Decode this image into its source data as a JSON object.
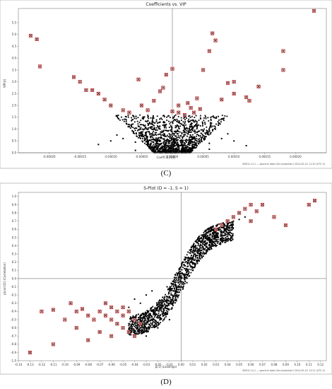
{
  "charts": [
    {
      "panel_label": "(C)",
      "title": "Coefficients vs. VIP",
      "xlabel": "CoeffCS[2](8)",
      "ylabel": "VIP[4]",
      "footer": "SIMCA 14.1 — spectral data (Ser-hydantoin) 2014-05-22 11:20 (UTC-5)",
      "xticks": [
        "-0.00020",
        "-0.00015",
        "-0.00010",
        "-0.00005",
        "0.00000",
        "0.00005",
        "0.00010",
        "0.00015",
        "0.00020"
      ],
      "yticks": [
        "0.0",
        "0.5",
        "1.0",
        "1.5",
        "2.0",
        "2.5",
        "3.0",
        "3.5",
        "4.0",
        "4.5",
        "5.0",
        "5.5"
      ]
    },
    {
      "panel_label": "(D)",
      "title": "S-Plot (D = -1, S = 1)",
      "xlabel": "p[1] (Loadings)",
      "ylabel": "p(corr)[1] (Correlation)",
      "footer": "SIMCA 14.1 — spectral data (Ser-hydantoin) 2014-05-22 11:21 (UTC-5)",
      "xticks": [
        "-0.14",
        "-0.13",
        "-0.12",
        "-0.11",
        "-0.10",
        "-0.09",
        "-0.08",
        "-0.07",
        "-0.06",
        "-0.05",
        "-0.04",
        "-0.03",
        "-0.02",
        "-0.01",
        "0.00",
        "0.01",
        "0.02",
        "0.03",
        "0.04",
        "0.05",
        "0.06",
        "0.07",
        "0.08",
        "0.09",
        "0.10",
        "0.11",
        "0.12"
      ],
      "yticks": [
        "-1.0",
        "-0.9",
        "-0.8",
        "-0.7",
        "-0.6",
        "-0.5",
        "-0.4",
        "-0.3",
        "-0.2",
        "-0.1",
        "0.0",
        "0.1",
        "0.2",
        "0.3",
        "0.4",
        "0.5",
        "0.6",
        "0.7",
        "0.8",
        "0.9",
        "1.0"
      ]
    }
  ],
  "chart_data": [
    {
      "type": "scatter",
      "title": "Coefficients vs. VIP",
      "xlabel": "CoeffCS[2](8)",
      "ylabel": "VIP[4]",
      "xlim": [
        -0.00025,
        0.00025
      ],
      "ylim": [
        0,
        6.1
      ],
      "grid": false,
      "series": [
        {
          "color": "#000000",
          "marker": "dot",
          "points": [
            [
              0.0,
              0.1
            ],
            [
              2e-05,
              0.2
            ],
            [
              -2e-05,
              0.15
            ],
            [
              1e-05,
              0.35
            ],
            [
              -1e-05,
              0.4
            ],
            [
              3e-05,
              0.5
            ],
            [
              -3e-05,
              0.55
            ],
            [
              5e-06,
              0.7
            ],
            [
              -5e-06,
              0.8
            ],
            [
              2e-05,
              0.9
            ],
            [
              -2e-05,
              1.0
            ],
            [
              4e-05,
              0.3
            ],
            [
              -4e-05,
              0.35
            ],
            [
              6e-05,
              0.4
            ],
            [
              -6e-05,
              0.45
            ],
            [
              1e-05,
              1.1
            ],
            [
              -1e-05,
              1.2
            ],
            [
              3e-05,
              1.1
            ],
            [
              -3e-05,
              1.15
            ],
            [
              5e-05,
              0.9
            ],
            [
              -5e-05,
              0.85
            ],
            [
              8e-05,
              0.6
            ],
            [
              -8e-05,
              0.6
            ],
            [
              0.0,
              1.3
            ],
            [
              2e-05,
              1.25
            ],
            [
              -2e-05,
              1.3
            ],
            [
              7e-05,
              1.0
            ],
            [
              -7e-05,
              1.1
            ],
            [
              9e-05,
              0.8
            ],
            [
              -9e-05,
              0.75
            ],
            [
              0.0001,
              0.5
            ],
            [
              -0.0001,
              0.5
            ],
            [
              0.00012,
              0.3
            ],
            [
              -0.00012,
              0.35
            ],
            [
              4e-05,
              1.3
            ],
            [
              -4e-05,
              1.35
            ],
            [
              1.5e-05,
              0.05
            ],
            [
              -1.5e-05,
              0.05
            ],
            [
              6e-05,
              0.15
            ],
            [
              -6e-05,
              0.1
            ]
          ]
        },
        {
          "color": "#c00000",
          "marker": "boxed-x",
          "points": [
            [
              -0.00023,
              4.95
            ],
            [
              -0.00022,
              4.8
            ],
            [
              -0.000215,
              3.65
            ],
            [
              -0.00016,
              3.2
            ],
            [
              -0.00015,
              3.0
            ],
            [
              -0.00014,
              2.65
            ],
            [
              -0.00012,
              2.5
            ],
            [
              -0.00011,
              2.25
            ],
            [
              -0.0001,
              2.0
            ],
            [
              -8e-05,
              1.8
            ],
            [
              -7e-05,
              1.7
            ],
            [
              -5e-05,
              2.0
            ],
            [
              -3e-05,
              2.2
            ],
            [
              -2e-05,
              2.6
            ],
            [
              -1.5e-05,
              2.75
            ],
            [
              -1e-05,
              3.3
            ],
            [
              0.0,
              3.55
            ],
            [
              0.0,
              1.75
            ],
            [
              1e-05,
              1.7
            ],
            [
              2e-05,
              1.6
            ],
            [
              1e-05,
              2.0
            ],
            [
              2.5e-05,
              2.1
            ],
            [
              3e-05,
              1.9
            ],
            [
              4e-05,
              2.3
            ],
            [
              5e-05,
              3.5
            ],
            [
              6e-05,
              4.3
            ],
            [
              7e-05,
              4.75
            ],
            [
              6.5e-05,
              5.05
            ],
            [
              8e-05,
              2.25
            ],
            [
              0.0001,
              2.5
            ],
            [
              0.00012,
              2.35
            ],
            [
              0.000125,
              2.2
            ],
            [
              0.00014,
              2.8
            ],
            [
              0.00018,
              3.5
            ],
            [
              0.00018,
              4.3
            ],
            [
              0.00023,
              6.0
            ],
            [
              -0.00013,
              2.65
            ],
            [
              -5.5e-05,
              3.1
            ],
            [
              3.5e-05,
              1.7
            ],
            [
              4.5e-05,
              1.85
            ],
            [
              -4e-05,
              1.8
            ],
            [
              9e-05,
              2.95
            ],
            [
              0.0001,
              3.0
            ]
          ]
        }
      ]
    },
    {
      "type": "scatter",
      "title": "S-Plot (D = -1, S = 1)",
      "xlabel": "p[1] (Loadings)",
      "ylabel": "p(corr)[1] (Correlation)",
      "xlim": [
        -0.14,
        0.125
      ],
      "ylim": [
        -1.0,
        1.05
      ],
      "grid": false,
      "series": [
        {
          "color": "#000000",
          "marker": "dot",
          "points": [
            [
              0.0,
              0.0
            ],
            [
              0.002,
              0.05
            ],
            [
              -0.002,
              -0.05
            ],
            [
              0.004,
              0.1
            ],
            [
              -0.004,
              -0.1
            ],
            [
              0.006,
              0.15
            ],
            [
              -0.006,
              -0.15
            ],
            [
              0.008,
              0.2
            ],
            [
              -0.008,
              -0.2
            ],
            [
              0.01,
              0.25
            ],
            [
              -0.01,
              -0.22
            ],
            [
              0.012,
              0.3
            ],
            [
              -0.012,
              -0.26
            ],
            [
              0.015,
              0.35
            ],
            [
              -0.015,
              -0.28
            ],
            [
              0.018,
              0.4
            ],
            [
              -0.018,
              -0.32
            ],
            [
              0.02,
              0.45
            ],
            [
              -0.02,
              -0.35
            ],
            [
              0.024,
              0.5
            ],
            [
              -0.024,
              -0.38
            ],
            [
              0.028,
              0.55
            ],
            [
              -0.028,
              -0.4
            ],
            [
              0.03,
              0.58
            ],
            [
              -0.03,
              -0.42
            ],
            [
              0.035,
              0.62
            ],
            [
              -0.035,
              -0.45
            ],
            [
              0.04,
              0.66
            ],
            [
              -0.04,
              -0.5
            ],
            [
              0.045,
              0.7
            ],
            [
              0.05,
              0.72
            ],
            [
              0.055,
              0.75
            ],
            [
              -0.01,
              -0.5
            ],
            [
              -0.02,
              -0.6
            ],
            [
              -0.03,
              -0.7
            ],
            [
              -0.015,
              -0.45
            ],
            [
              -0.025,
              -0.55
            ],
            [
              0.005,
              -0.05
            ],
            [
              -0.005,
              0.05
            ],
            [
              0.01,
              0.1
            ],
            [
              0.012,
              0.15
            ],
            [
              -0.012,
              -0.1
            ],
            [
              -0.03,
              -0.2
            ],
            [
              -0.025,
              -0.15
            ],
            [
              -0.04,
              -0.25
            ],
            [
              -0.035,
              -0.3
            ],
            [
              0.02,
              0.3
            ],
            [
              0.025,
              0.4
            ],
            [
              -0.045,
              -0.35
            ],
            [
              -0.045,
              -0.55
            ],
            [
              -0.035,
              -0.6
            ]
          ]
        },
        {
          "color": "#c00000",
          "marker": "boxed-x",
          "points": [
            [
              -0.13,
              -0.9
            ],
            [
              -0.11,
              -0.8
            ],
            [
              -0.12,
              -0.4
            ],
            [
              -0.11,
              -0.38
            ],
            [
              -0.1,
              -0.5
            ],
            [
              -0.09,
              -0.4
            ],
            [
              -0.085,
              -0.37
            ],
            [
              -0.08,
              -0.45
            ],
            [
              -0.075,
              -0.5
            ],
            [
              -0.07,
              -0.4
            ],
            [
              -0.065,
              -0.45
            ],
            [
              -0.06,
              -0.5
            ],
            [
              -0.06,
              -0.35
            ],
            [
              -0.055,
              -0.4
            ],
            [
              -0.055,
              -0.55
            ],
            [
              -0.05,
              -0.45
            ],
            [
              -0.05,
              -0.6
            ],
            [
              -0.045,
              -0.4
            ],
            [
              -0.045,
              -0.65
            ],
            [
              -0.04,
              -0.7
            ],
            [
              -0.035,
              -0.55
            ],
            [
              -0.07,
              -0.65
            ],
            [
              -0.08,
              -0.75
            ],
            [
              -0.095,
              -0.3
            ],
            [
              -0.09,
              -0.6
            ],
            [
              -0.065,
              -0.3
            ],
            [
              -0.06,
              -0.7
            ],
            [
              -0.05,
              -0.35
            ],
            [
              -0.04,
              -0.5
            ],
            [
              0.03,
              0.6
            ],
            [
              0.035,
              0.65
            ],
            [
              0.04,
              0.7
            ],
            [
              0.045,
              0.75
            ],
            [
              0.05,
              0.8
            ],
            [
              0.055,
              0.85
            ],
            [
              0.06,
              0.9
            ],
            [
              0.065,
              0.82
            ],
            [
              0.07,
              0.9
            ],
            [
              0.08,
              0.75
            ],
            [
              0.09,
              0.65
            ],
            [
              0.11,
              0.9
            ],
            [
              0.115,
              0.95
            ],
            [
              0.06,
              0.7
            ]
          ]
        }
      ]
    }
  ]
}
